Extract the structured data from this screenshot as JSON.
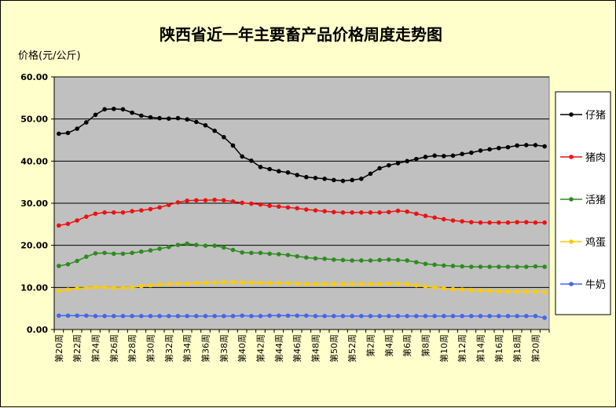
{
  "chart_data": {
    "type": "line",
    "title": "陕西省近一年主要畜产品价格周度走势图",
    "ylabel": "价格(元/公斤)",
    "ylim": [
      0,
      60
    ],
    "yticks": [
      "0.00",
      "10.00",
      "20.00",
      "30.00",
      "40.00",
      "50.00",
      "60.00"
    ],
    "grid": "horizontal",
    "legend": "right",
    "x_tick_labels": [
      "第20周",
      "第22周",
      "第24周",
      "第26周",
      "第28周",
      "第30周",
      "第32周",
      "第34周",
      "第36周",
      "第38周",
      "第40周",
      "第42周",
      "第44周",
      "第46周",
      "第48周",
      "第50周",
      "第52周",
      "第2周",
      "第4周",
      "第6周",
      "第8周",
      "第10周",
      "第12周",
      "第14周",
      "第16周",
      "第18周",
      "第20周"
    ],
    "series": [
      {
        "name": "仔猪",
        "color": "#000000",
        "values": [
          46.5,
          46.7,
          47.7,
          49.2,
          51.0,
          52.3,
          52.4,
          52.3,
          51.5,
          50.8,
          50.4,
          50.2,
          50.1,
          50.2,
          49.9,
          49.3,
          48.5,
          47.2,
          45.7,
          43.7,
          41.1,
          40.1,
          38.6,
          38.1,
          37.6,
          37.3,
          36.7,
          36.2,
          36.0,
          35.8,
          35.5,
          35.3,
          35.5,
          35.8,
          37.0,
          38.3,
          39.0,
          39.5,
          40.0,
          40.5,
          41.0,
          41.3,
          41.2,
          41.3,
          41.7,
          42.0,
          42.5,
          42.8,
          43.1,
          43.3,
          43.7,
          43.8,
          43.8,
          43.5
        ]
      },
      {
        "name": "猪肉",
        "color": "#ee1111",
        "values": [
          24.7,
          25.1,
          25.9,
          26.8,
          27.5,
          27.8,
          27.8,
          27.8,
          28.1,
          28.3,
          28.6,
          29.0,
          29.6,
          30.2,
          30.6,
          30.7,
          30.7,
          30.8,
          30.7,
          30.4,
          30.1,
          29.9,
          29.7,
          29.4,
          29.2,
          29.0,
          28.8,
          28.5,
          28.3,
          28.1,
          27.9,
          27.8,
          27.8,
          27.8,
          27.8,
          27.8,
          27.9,
          28.2,
          28.0,
          27.5,
          27.0,
          26.6,
          26.2,
          25.9,
          25.7,
          25.5,
          25.4,
          25.4,
          25.4,
          25.4,
          25.5,
          25.5,
          25.4,
          25.4
        ]
      },
      {
        "name": "活猪",
        "color": "#2e8b20",
        "values": [
          15.1,
          15.5,
          16.3,
          17.3,
          18.1,
          18.2,
          18.0,
          18.0,
          18.2,
          18.5,
          18.8,
          19.2,
          19.6,
          20.1,
          20.4,
          20.1,
          19.9,
          19.9,
          19.5,
          18.9,
          18.3,
          18.2,
          18.2,
          18.0,
          17.9,
          17.7,
          17.4,
          17.1,
          16.9,
          16.8,
          16.6,
          16.5,
          16.4,
          16.4,
          16.4,
          16.5,
          16.6,
          16.5,
          16.4,
          16.0,
          15.6,
          15.4,
          15.2,
          15.1,
          15.0,
          14.9,
          14.9,
          14.9,
          14.9,
          14.9,
          14.9,
          14.9,
          15.0,
          14.9
        ]
      },
      {
        "name": "鸡蛋",
        "color": "#ffcc00",
        "values": [
          9.2,
          9.5,
          9.8,
          9.9,
          10.0,
          10.0,
          9.9,
          9.9,
          10.0,
          10.3,
          10.5,
          10.7,
          10.8,
          10.9,
          10.9,
          11.0,
          11.1,
          11.1,
          11.3,
          11.2,
          11.2,
          11.1,
          11.1,
          11.0,
          11.0,
          11.0,
          10.9,
          10.8,
          10.8,
          10.8,
          10.8,
          10.8,
          10.8,
          10.8,
          10.8,
          10.8,
          10.9,
          10.9,
          10.8,
          10.5,
          10.2,
          10.0,
          9.8,
          9.6,
          9.5,
          9.4,
          9.3,
          9.2,
          9.1,
          9.0,
          9.0,
          9.0,
          9.0,
          8.9
        ]
      },
      {
        "name": "牛奶",
        "color": "#4466ee",
        "values": [
          3.3,
          3.3,
          3.3,
          3.3,
          3.2,
          3.2,
          3.2,
          3.2,
          3.2,
          3.2,
          3.2,
          3.2,
          3.2,
          3.2,
          3.2,
          3.2,
          3.2,
          3.2,
          3.2,
          3.2,
          3.3,
          3.2,
          3.2,
          3.3,
          3.3,
          3.3,
          3.3,
          3.3,
          3.2,
          3.2,
          3.2,
          3.2,
          3.2,
          3.2,
          3.2,
          3.2,
          3.2,
          3.2,
          3.2,
          3.2,
          3.2,
          3.2,
          3.2,
          3.2,
          3.2,
          3.2,
          3.2,
          3.2,
          3.2,
          3.2,
          3.2,
          3.2,
          3.2,
          2.8
        ]
      }
    ]
  }
}
